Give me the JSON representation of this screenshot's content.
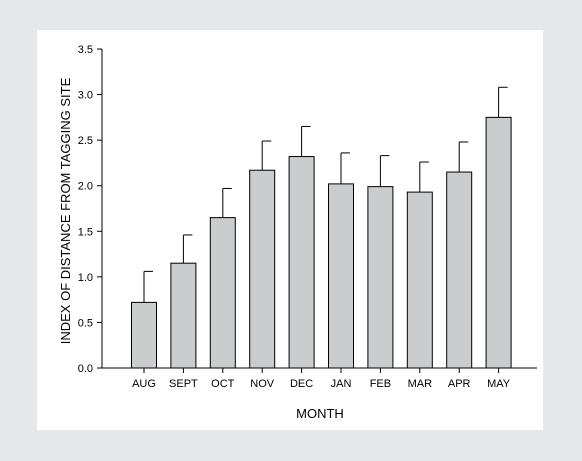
{
  "chart_data": {
    "type": "bar",
    "title": "",
    "xlabel": "MONTH",
    "ylabel": "INDEX OF DISTANCE FROM TAGGING SITE",
    "categories": [
      "AUG",
      "SEPT",
      "OCT",
      "NOV",
      "DEC",
      "JAN",
      "FEB",
      "MAR",
      "APR",
      "MAY"
    ],
    "values": [
      0.72,
      1.15,
      1.65,
      2.17,
      2.32,
      2.02,
      1.99,
      1.93,
      2.15,
      2.75
    ],
    "error_upper": [
      0.34,
      0.31,
      0.32,
      0.32,
      0.33,
      0.34,
      0.34,
      0.33,
      0.33,
      0.33
    ],
    "ylim": [
      0,
      3.5
    ],
    "yticks": [
      "0.0",
      "0.5",
      "1.0",
      "1.5",
      "2.0",
      "2.5",
      "3.0",
      "3.5"
    ],
    "grid": false,
    "colors": {
      "bar_fill": "#cbcccd",
      "background": "#e6e7e8",
      "panel": "#ffffff"
    }
  }
}
